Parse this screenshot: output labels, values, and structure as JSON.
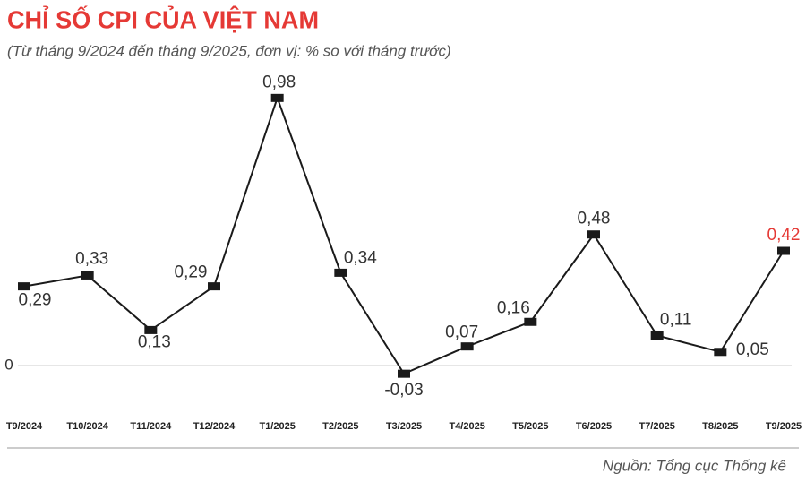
{
  "chart_data": {
    "type": "line",
    "title": "CHỈ SỐ CPI CỦA VIỆT NAM",
    "subtitle": "(Từ tháng 9/2024 đến tháng 9/2025, đơn vị: % so với tháng trước)",
    "source": "Nguồn: Tổng cục Thống kê",
    "categories": [
      "T9/2024",
      "T10/2024",
      "T11/2024",
      "T12/2024",
      "T1/2025",
      "T2/2025",
      "T3/2025",
      "T4/2025",
      "T5/2025",
      "T6/2025",
      "T7/2025",
      "T8/2025",
      "T9/2025"
    ],
    "series": [
      {
        "name": "CPI",
        "color": "#1a1a1a",
        "values": [
          0.29,
          0.33,
          0.13,
          0.29,
          0.98,
          0.34,
          -0.03,
          0.07,
          0.16,
          0.48,
          0.11,
          0.05,
          0.42
        ],
        "value_labels": [
          "0,29",
          "0,33",
          "0,13",
          "0,29",
          "0,98",
          "0,34",
          "-0,03",
          "0,07",
          "0,16",
          "0,48",
          "0,11",
          "0,05",
          "0,42"
        ],
        "value_label_colors": [
          "#333333",
          "#333333",
          "#333333",
          "#333333",
          "#333333",
          "#333333",
          "#333333",
          "#333333",
          "#333333",
          "#333333",
          "#333333",
          "#333333",
          "#e53935"
        ]
      }
    ],
    "ylim": [
      -0.1,
      1.05
    ],
    "yticks": [
      0
    ],
    "grid": true
  }
}
